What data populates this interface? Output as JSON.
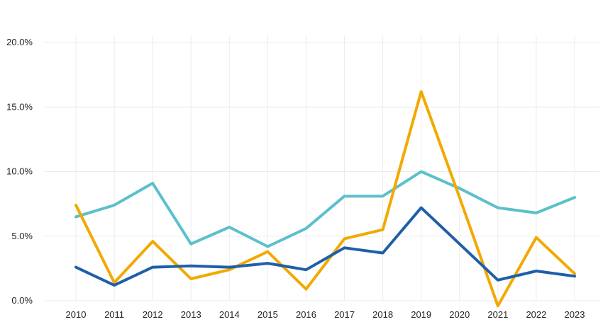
{
  "chart_data": {
    "type": "line",
    "title": "",
    "xlabel": "",
    "ylabel": "",
    "categories": [
      "2010",
      "2011",
      "2012",
      "2013",
      "2014",
      "2015",
      "2016",
      "2017",
      "2018",
      "2019",
      "2020",
      "2021",
      "2022",
      "2023"
    ],
    "ylim": [
      0,
      20
    ],
    "yticks": [
      0,
      5,
      10,
      15,
      20
    ],
    "ytick_labels": [
      "0.0%",
      "5.0%",
      "10.0%",
      "15.0%",
      "20.0%"
    ],
    "grid": true,
    "legend": "none",
    "series": [
      {
        "color": "#5bc0cb",
        "values": [
          6.5,
          7.4,
          9.1,
          4.4,
          5.7,
          4.2,
          5.6,
          8.1,
          8.1,
          10.0,
          8.7,
          7.2,
          6.8,
          8.0
        ]
      },
      {
        "color": "#f2a900",
        "values": [
          7.4,
          1.4,
          4.6,
          1.7,
          2.4,
          3.8,
          0.9,
          4.8,
          5.5,
          16.2,
          8.0,
          -0.4,
          4.9,
          2.1
        ]
      },
      {
        "color": "#1f5fa8",
        "values": [
          2.6,
          1.2,
          2.6,
          2.7,
          2.6,
          2.9,
          2.4,
          4.1,
          3.7,
          7.2,
          4.4,
          1.6,
          2.3,
          1.9
        ]
      }
    ]
  }
}
